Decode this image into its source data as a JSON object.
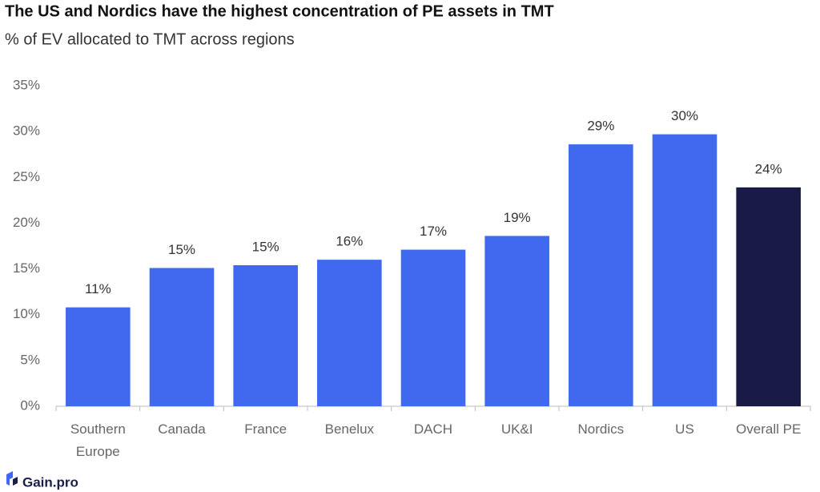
{
  "chart_data": {
    "type": "bar",
    "title": "The US and Nordics have the highest concentration of PE assets in TMT",
    "subtitle": "% of EV allocated to TMT across regions",
    "categories": [
      "Southern Europe",
      "Canada",
      "France",
      "Benelux",
      "DACH",
      "UK&I",
      "Nordics",
      "US",
      "Overall PE"
    ],
    "values": [
      10.8,
      15.1,
      15.4,
      16.0,
      17.1,
      18.6,
      28.6,
      29.7,
      23.9
    ],
    "value_labels": [
      "11%",
      "15%",
      "15%",
      "16%",
      "17%",
      "19%",
      "29%",
      "30%",
      "24%"
    ],
    "colors": [
      "#4169f0",
      "#4169f0",
      "#4169f0",
      "#4169f0",
      "#4169f0",
      "#4169f0",
      "#4169f0",
      "#4169f0",
      "#1a1a47"
    ],
    "ylim": [
      0,
      35
    ],
    "yticks": [
      {
        "value": 0,
        "label": "0%"
      },
      {
        "value": 5,
        "label": "5%"
      },
      {
        "value": 10,
        "label": "10%"
      },
      {
        "value": 15,
        "label": "15%"
      },
      {
        "value": 20,
        "label": "20%"
      },
      {
        "value": 25,
        "label": "25%"
      },
      {
        "value": 30,
        "label": "30%"
      },
      {
        "value": 35,
        "label": "35%"
      }
    ],
    "grid": false,
    "footer": "Gain.pro"
  }
}
